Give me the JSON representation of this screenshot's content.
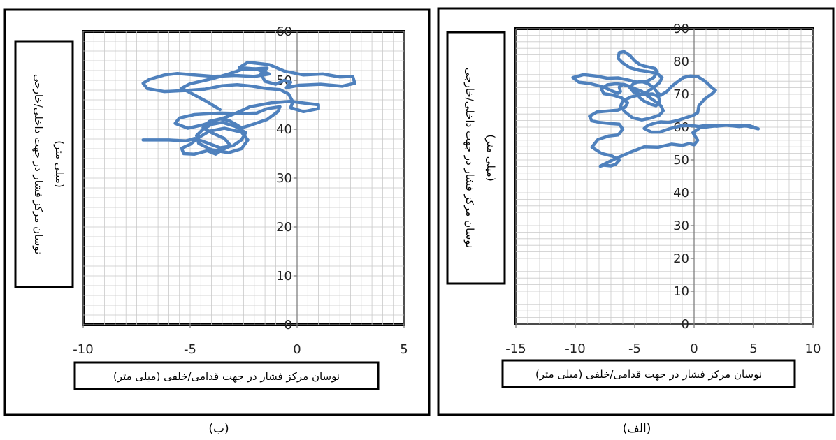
{
  "chart_data": [
    {
      "type": "line",
      "panel": "b",
      "caption": "(ب)",
      "xlabel": "نوسان مرکز فشار در جهت قدامی/خلفی (میلی متر)",
      "ylabel_line1": "نوسان مرکز فشار در جهت داخلی/خارجی",
      "ylabel_line2": "(میلی متر)",
      "xlim": [
        -10,
        5
      ],
      "ylim": [
        0,
        60
      ],
      "x_ticks": [
        -10,
        -5,
        0,
        5
      ],
      "y_ticks": [
        0,
        10,
        20,
        30,
        40,
        50,
        60
      ],
      "grid": true,
      "series_color": "#4f81bd",
      "series": [
        {
          "x": [
            -7.2,
            -6.0,
            -5.2,
            -4.8,
            -4.2,
            -3.6,
            -3.0,
            -2.6,
            -2.4,
            -2.9,
            -3.5,
            -4.0,
            -4.4,
            -4.7,
            -4.6,
            -4.0,
            -3.2,
            -2.6,
            -2.3,
            -2.6,
            -3.4,
            -4.1,
            -4.6,
            -5.0,
            -5.4,
            -5.3,
            -4.8,
            -4.2,
            -3.8,
            -3.5,
            -3.1,
            -3.4,
            -4.0,
            -4.4,
            -4.1,
            -3.6,
            -3.2,
            -2.9,
            -2.6,
            -2.2,
            -1.4,
            -0.9,
            -0.8,
            -1.4,
            -1.9,
            -2.6,
            -3.6,
            -4.8,
            -5.5,
            -5.7,
            -5.1,
            -4.4,
            -3.8,
            -3.3,
            -2.8,
            -2.2,
            -1.2,
            -0.3,
            0.4,
            1.0,
            1.0,
            0.3,
            -0.3,
            -0.2,
            -0.4,
            -0.8,
            -1.4,
            -2.1,
            -2.8,
            -3.5,
            -4.3,
            -5.3,
            -6.2,
            -7.0,
            -7.2,
            -6.9,
            -6.2,
            -5.6,
            -4.8,
            -3.9,
            -2.9,
            -2.0,
            -1.3,
            -1.9,
            -2.7,
            -2.3,
            -1.3,
            -0.6,
            0.3,
            1.2,
            2.0,
            2.6,
            2.7,
            2.1,
            1.1,
            0.1,
            -0.5,
            -0.3,
            -0.6,
            -1.0,
            -1.5,
            -1.7,
            -1.4,
            -1.8,
            -2.6,
            -3.2,
            -4.0,
            -5.0,
            -5.4,
            -4.8,
            -4.2,
            -3.6
          ],
          "y": [
            37.8,
            37.8,
            37.6,
            38.1,
            37.2,
            36.2,
            36.6,
            37.8,
            39.3,
            40.6,
            41.4,
            41.0,
            40.0,
            38.7,
            37.1,
            35.8,
            35.2,
            36.0,
            37.8,
            39.4,
            40.2,
            39.6,
            38.3,
            36.9,
            36.1,
            35.0,
            34.9,
            35.6,
            34.9,
            35.8,
            36.6,
            38.1,
            39.3,
            40.3,
            41.6,
            42.1,
            41.8,
            41.1,
            40.3,
            40.8,
            42.0,
            43.6,
            44.6,
            44.2,
            43.3,
            43.2,
            43.3,
            43.0,
            42.3,
            41.2,
            40.2,
            40.9,
            41.8,
            42.5,
            43.4,
            44.6,
            45.4,
            45.7,
            45.3,
            45.0,
            44.2,
            43.6,
            44.4,
            45.6,
            47.2,
            48.1,
            48.3,
            48.8,
            49.1,
            48.9,
            48.2,
            47.9,
            47.7,
            48.3,
            49.4,
            50.2,
            51.1,
            51.4,
            51.1,
            50.8,
            51.0,
            50.8,
            51.3,
            52.3,
            52.6,
            53.7,
            53.2,
            51.9,
            51.1,
            51.3,
            50.7,
            50.8,
            49.4,
            48.8,
            49.2,
            49.0,
            48.5,
            49.6,
            50.0,
            49.2,
            49.8,
            51.4,
            52.5,
            52.4,
            52.2,
            51.3,
            50.3,
            49.3,
            48.4,
            47.0,
            45.6,
            44.0
          ]
        }
      ]
    },
    {
      "type": "line",
      "panel": "alef",
      "caption": "(الف)",
      "xlabel": "نوسان مرکز فشار در جهت قدامی/خلفی (میلی متر)",
      "ylabel_line1": "نوسان مرکز فشار در جهت داخلی/خارجی",
      "ylabel_line2": "(میلی متر)",
      "xlim": [
        -15,
        10
      ],
      "ylim": [
        0,
        90
      ],
      "x_ticks": [
        -15,
        -10,
        -5,
        0,
        5,
        10
      ],
      "y_ticks": [
        0,
        10,
        20,
        30,
        40,
        50,
        60,
        70,
        80,
        90
      ],
      "grid": true,
      "series_color": "#4f81bd",
      "series": [
        {
          "x": [
            5.4,
            4.6,
            3.8,
            2.7,
            1.6,
            0.5,
            -0.1,
            0.3,
            0.0,
            -0.4,
            -1.0,
            -1.9,
            -3.0,
            -4.2,
            -5.4,
            -6.5,
            -7.4,
            -7.9,
            -7.6,
            -7.0,
            -6.6,
            -6.3,
            -6.9,
            -7.8,
            -8.6,
            -8.1,
            -7.2,
            -6.4,
            -6.0,
            -6.3,
            -7.1,
            -7.9,
            -8.6,
            -8.8,
            -8.2,
            -7.3,
            -6.4,
            -5.8,
            -5.6,
            -6.1,
            -6.8,
            -7.6,
            -7.8,
            -7.3,
            -6.6,
            -5.9,
            -5.4,
            -4.9,
            -4.4,
            -3.9,
            -3.3,
            -2.8,
            -2.6,
            -2.9,
            -3.6,
            -4.4,
            -5.2,
            -5.8,
            -6.2,
            -6.0,
            -5.3,
            -4.6,
            -4.0,
            -3.4,
            -2.9,
            -2.7,
            -3.1,
            -3.8,
            -4.6,
            -5.4,
            -6.0,
            -6.4,
            -6.3,
            -5.9,
            -5.4,
            -5.0,
            -4.6,
            -4.2,
            -3.7,
            -3.3,
            -3.1,
            -3.4,
            -4.0,
            -4.8,
            -5.6,
            -6.4,
            -7.3,
            -8.3,
            -9.3,
            -10.2,
            -9.7,
            -8.8,
            -7.7,
            -6.9,
            -6.4,
            -6.2,
            -6.3,
            -6.0,
            -5.5,
            -5.0,
            -4.7,
            -4.6,
            -4.2,
            -3.6,
            -3.2,
            -2.9,
            -3.0,
            -3.5,
            -4.0,
            -4.6,
            -5.1,
            -5.4,
            -5.1,
            -4.5,
            -3.9,
            -3.4,
            -3.1,
            -2.8,
            -2.3,
            -1.9,
            -1.4,
            -0.9,
            -0.3,
            0.3,
            0.8,
            1.2,
            1.5,
            1.8,
            1.5,
            0.9,
            0.4,
            0.3,
            -0.1,
            -0.6,
            -1.4,
            -2.2,
            -2.8,
            -3.4,
            -3.9,
            -4.2,
            -3.6,
            -2.9,
            -2.0,
            -1.1,
            -0.3,
            0.4,
            1.1,
            1.9,
            2.7,
            3.6,
            4.5,
            5.4
          ],
          "y": [
            59.5,
            60.5,
            60.2,
            60.6,
            60.3,
            59.8,
            58.3,
            56.0,
            54.6,
            55.0,
            54.4,
            54.8,
            53.9,
            54.0,
            52.3,
            50.6,
            49.0,
            48.1,
            48.4,
            48.2,
            48.7,
            49.9,
            51.2,
            52.0,
            53.9,
            56.2,
            57.3,
            57.6,
            59.4,
            60.9,
            61.1,
            61.4,
            61.9,
            63.3,
            64.6,
            64.9,
            65.2,
            66.1,
            67.4,
            68.9,
            69.7,
            70.2,
            71.6,
            72.9,
            73.2,
            73.0,
            72.4,
            71.6,
            70.9,
            69.4,
            67.9,
            66.5,
            65.0,
            63.7,
            62.8,
            62.2,
            62.9,
            64.6,
            66.3,
            68.0,
            69.2,
            69.8,
            70.6,
            72.1,
            73.6,
            75.1,
            76.3,
            76.9,
            77.3,
            78.1,
            79.5,
            81.0,
            82.7,
            83.0,
            81.8,
            80.2,
            79.1,
            78.6,
            78.2,
            77.9,
            76.8,
            75.1,
            73.9,
            73.7,
            74.4,
            75.0,
            74.9,
            75.6,
            76.0,
            75.1,
            73.7,
            73.3,
            72.3,
            71.0,
            70.3,
            70.8,
            72.2,
            73.0,
            72.5,
            71.5,
            70.3,
            69.0,
            67.9,
            66.9,
            66.5,
            67.9,
            69.3,
            70.1,
            70.0,
            69.8,
            70.7,
            72.0,
            73.3,
            74.0,
            73.3,
            72.0,
            70.5,
            69.7,
            70.8,
            72.4,
            73.8,
            75.1,
            75.6,
            75.4,
            74.3,
            73.1,
            72.0,
            71.2,
            70.1,
            68.6,
            66.5,
            64.4,
            63.5,
            63.0,
            62.0,
            61.4,
            61.6,
            61.1,
            60.5,
            59.6,
            58.5,
            58.5,
            59.6,
            60.4,
            60.5,
            60.2,
            60.6,
            60.3,
            60.6,
            60.5,
            60.3,
            59.5
          ]
        }
      ]
    }
  ]
}
